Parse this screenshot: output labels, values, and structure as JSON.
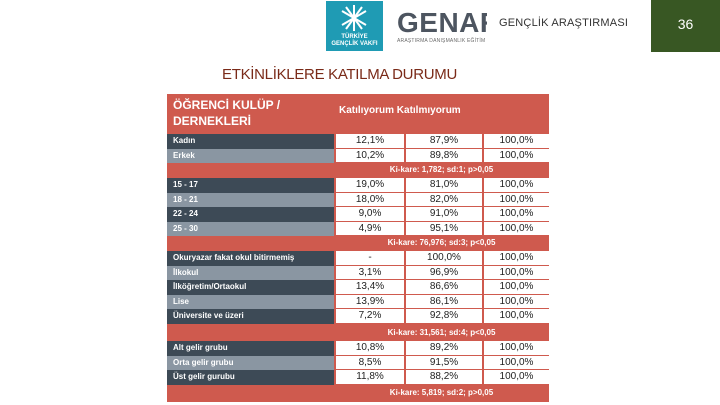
{
  "header": {
    "logo_tgv_line1": "TÜRKİYE",
    "logo_tgv_line2": "GENÇLİK VAKFI",
    "logo_genar_word": "GENAR",
    "logo_genar_sub": "ARAŞTIRMA DANIŞMANLIK EĞİTİM",
    "section_title": "GENÇLİK ARAŞTIRMASI",
    "page_number": "36"
  },
  "slide_title": "ETKİNLİKLERE KATILMA DURUMU",
  "table": {
    "header_label_line1": "ÖĞRENCİ KULÜP /",
    "header_label_line2": "DERNEKLERİ",
    "col_headers": "Katılıyorum   Katılmıyorum",
    "groups": [
      {
        "rows": [
          {
            "label": "Kadın",
            "c1": "12,1%",
            "c2": "87,9%",
            "c3": "100,0%"
          },
          {
            "label": "Erkek",
            "c1": "10,2%",
            "c2": "89,8%",
            "c3": "100,0%"
          }
        ],
        "stat": "Ki-kare: 1,782; sd:1; p>0,05"
      },
      {
        "rows": [
          {
            "label": "15 - 17",
            "c1": "19,0%",
            "c2": "81,0%",
            "c3": "100,0%"
          },
          {
            "label": "18 - 21",
            "c1": "18,0%",
            "c2": "82,0%",
            "c3": "100,0%"
          },
          {
            "label": "22 - 24",
            "c1": "9,0%",
            "c2": "91,0%",
            "c3": "100,0%"
          },
          {
            "label": "25 - 30",
            "c1": "4,9%",
            "c2": "95,1%",
            "c3": "100,0%"
          }
        ],
        "stat": "Ki-kare: 76,976; sd:3; p<0,05"
      },
      {
        "rows": [
          {
            "label": "Okuryazar fakat okul bitirmemiş",
            "c1": "-",
            "c2": "100,0%",
            "c3": "100,0%"
          },
          {
            "label": "İlkokul",
            "c1": "3,1%",
            "c2": "96,9%",
            "c3": "100,0%"
          },
          {
            "label": "İlköğretim/Ortaokul",
            "c1": "13,4%",
            "c2": "86,6%",
            "c3": "100,0%"
          },
          {
            "label": "Lise",
            "c1": "13,9%",
            "c2": "86,1%",
            "c3": "100,0%"
          },
          {
            "label": "Üniversite ve üzeri",
            "c1": "7,2%",
            "c2": "92,8%",
            "c3": "100,0%"
          }
        ],
        "stat": "Ki-kare: 31,561; sd:4; p<0,05"
      },
      {
        "rows": [
          {
            "label": "Alt gelir grubu",
            "c1": "10,8%",
            "c2": "89,2%",
            "c3": "100,0%"
          },
          {
            "label": "Orta gelir grubu",
            "c1": "8,5%",
            "c2": "91,5%",
            "c3": "100,0%"
          },
          {
            "label": "Üst gelir gurubu",
            "c1": "11,8%",
            "c2": "88,2%",
            "c3": "100,0%"
          }
        ],
        "stat": "Ki-kare: 5,819; sd:2; p>0,05"
      }
    ]
  }
}
